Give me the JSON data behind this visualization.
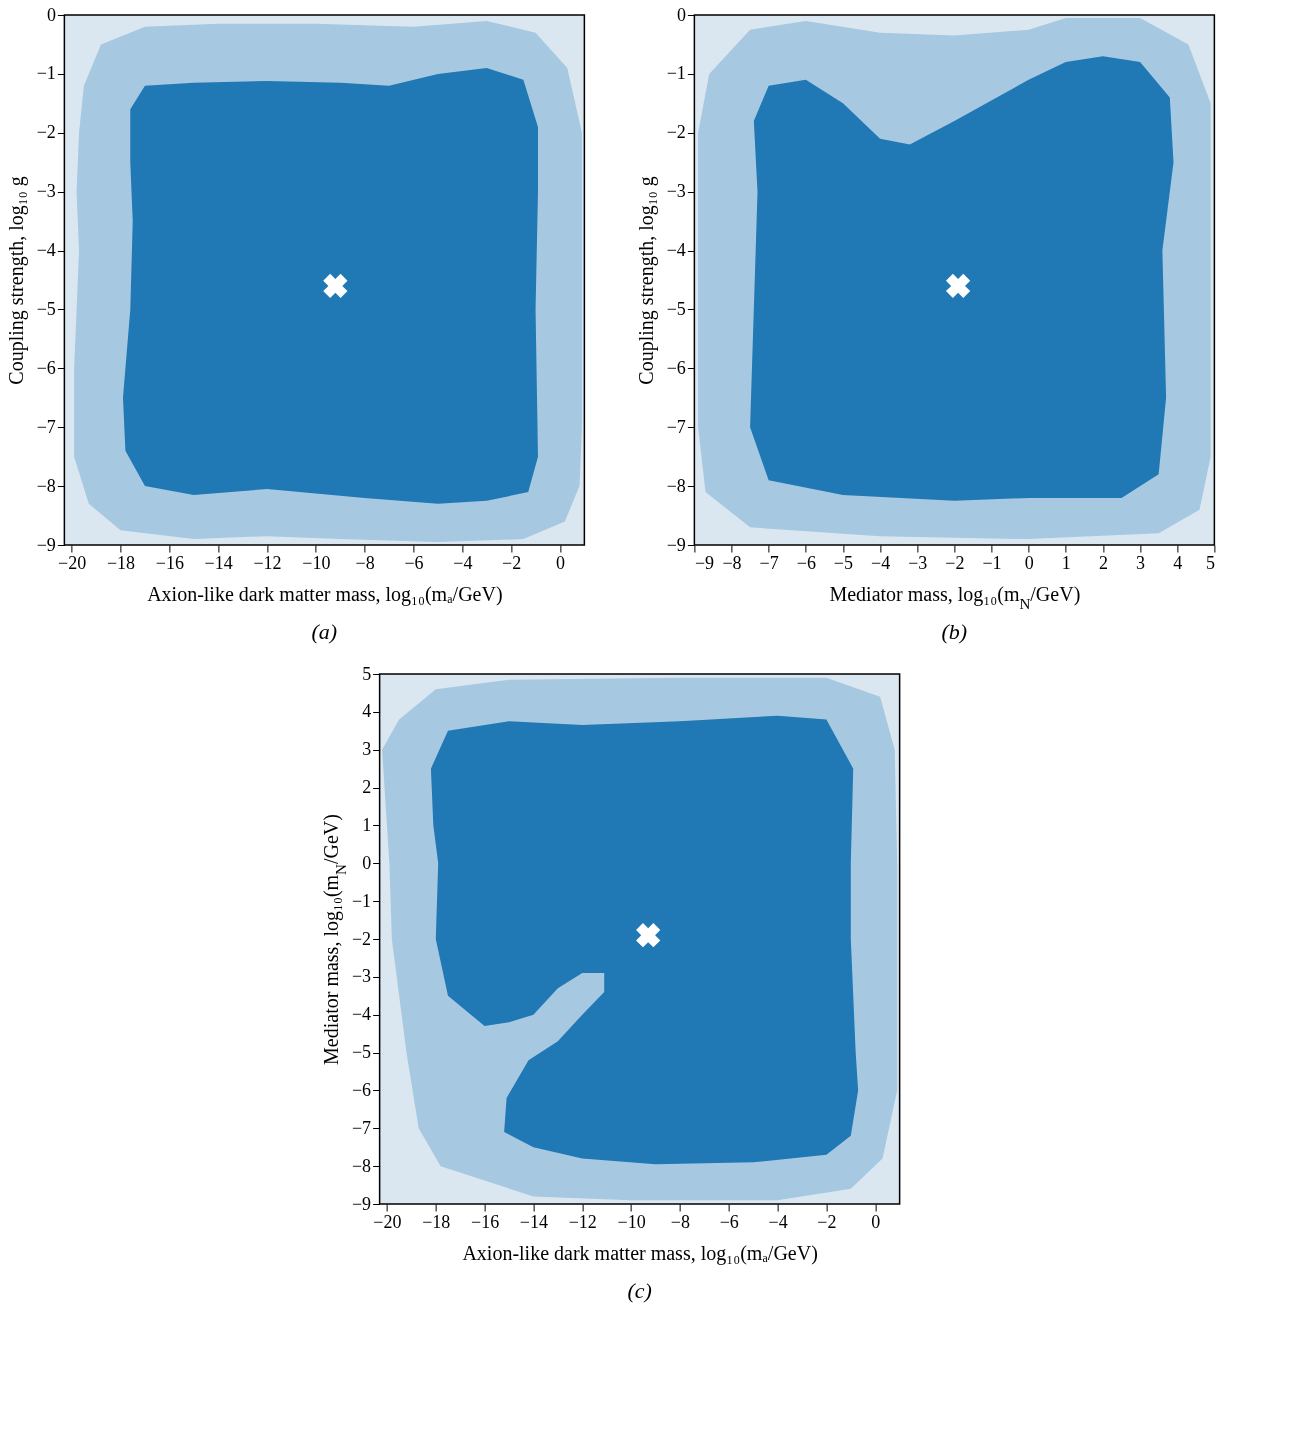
{
  "chart_data": [
    {
      "type": "area",
      "xlabel": "Axion-like dark matter mass,  log₁₀(mₐ/GeV)",
      "ylabel": "Coupling strength,  log₁₀ g",
      "xlim": [
        -20.3,
        1
      ],
      "ylim": [
        -9,
        0
      ],
      "xticks": [
        -20,
        -18,
        -16,
        -14,
        -12,
        -10,
        -8,
        -6,
        -4,
        -2,
        0
      ],
      "yticks": [
        -9,
        -8,
        -7,
        -6,
        -5,
        -4,
        -3,
        -2,
        -1,
        0
      ],
      "annotations": [
        "(a)"
      ],
      "series": [
        {
          "type": "area",
          "color": "#a6c8e1",
          "x": [
            -19.7,
            -19.5,
            -18.8,
            -17,
            -14,
            -10,
            -6,
            -3,
            -1,
            0.3,
            0.9,
            0.9,
            0.9,
            0.8,
            0.2,
            -1.5,
            -5,
            -9,
            -12,
            -15,
            -18,
            -19.3,
            -19.9,
            -19.9,
            -19.7,
            -19.8
          ],
          "values": [
            -2,
            -1.2,
            -0.5,
            -0.2,
            -0.15,
            -0.15,
            -0.2,
            -0.1,
            -0.3,
            -0.9,
            -2,
            -4,
            -7,
            -8,
            -8.6,
            -8.9,
            -8.95,
            -8.9,
            -8.85,
            -8.9,
            -8.75,
            -8.3,
            -7.5,
            -6,
            -4,
            -3
          ]
        },
        {
          "type": "area",
          "color": "#2078b4",
          "x": [
            -17.6,
            -17,
            -15,
            -12,
            -9,
            -7,
            -5,
            -3,
            -1.5,
            -0.9,
            -0.9,
            -1,
            -0.9,
            -1.3,
            -3,
            -5,
            -8,
            -12,
            -15,
            -17,
            -17.8,
            -17.9,
            -17.6,
            -17.5,
            -17.6
          ],
          "values": [
            -1.6,
            -1.2,
            -1.15,
            -1.12,
            -1.15,
            -1.2,
            -1,
            -0.9,
            -1.1,
            -1.9,
            -3,
            -5,
            -7.5,
            -8.1,
            -8.25,
            -8.3,
            -8.2,
            -8.05,
            -8.15,
            -8,
            -7.4,
            -6.5,
            -5,
            -3.5,
            -2.5
          ]
        },
        {
          "type": "scatter",
          "marker": "cross",
          "color": "#ffffff",
          "x": [
            -9.2
          ],
          "values": [
            -4.6
          ]
        }
      ]
    },
    {
      "type": "area",
      "xlabel": "Mediator mass,  log₁₀(m$_{N}$/GeV)",
      "ylabel": "Coupling strength,  log₁₀ g",
      "xlim": [
        -9,
        5
      ],
      "ylim": [
        -9,
        0
      ],
      "xticks": [
        -9,
        -8,
        -7,
        -6,
        -5,
        -4,
        -3,
        -2,
        -1,
        0,
        1,
        2,
        3,
        4,
        5
      ],
      "yticks": [
        -9,
        -8,
        -7,
        -6,
        -5,
        -4,
        -3,
        -2,
        -1,
        0
      ],
      "annotations": [
        "(b)"
      ],
      "series": [
        {
          "type": "area",
          "color": "#a6c8e1",
          "x": [
            -8.9,
            -8.6,
            -7.5,
            -6,
            -4,
            -2,
            0,
            1,
            3,
            4.3,
            4.9,
            4.9,
            4.9,
            4.6,
            3.5,
            0,
            -4,
            -7.5,
            -8.7,
            -8.9
          ],
          "values": [
            -2,
            -1,
            -0.25,
            -0.1,
            -0.3,
            -0.35,
            -0.25,
            -0.05,
            -0.05,
            -0.5,
            -1.5,
            -4,
            -7.5,
            -8.4,
            -8.8,
            -8.9,
            -8.85,
            -8.7,
            -8.1,
            -7
          ]
        },
        {
          "type": "area",
          "color": "#2078b4",
          "x": [
            -7.4,
            -7,
            -6,
            -5,
            -4,
            -3.2,
            -2,
            0,
            1,
            2,
            3,
            3.8,
            3.9,
            3.6,
            3.7,
            3.5,
            2.5,
            0,
            -2,
            -5,
            -7,
            -7.5,
            -7.4,
            -7.3
          ],
          "values": [
            -1.8,
            -1.2,
            -1.1,
            -1.5,
            -2.1,
            -2.2,
            -1.8,
            -1.1,
            -0.8,
            -0.7,
            -0.8,
            -1.4,
            -2.5,
            -4,
            -6.5,
            -7.8,
            -8.2,
            -8.2,
            -8.25,
            -8.15,
            -7.9,
            -7,
            -5,
            -3
          ]
        },
        {
          "type": "scatter",
          "marker": "cross",
          "color": "#ffffff",
          "x": [
            -1.9
          ],
          "values": [
            -4.6
          ]
        }
      ]
    },
    {
      "type": "area",
      "xlabel": "Axion-like dark matter mass,  log₁₀(mₐ/GeV)",
      "ylabel": "Mediator mass,  log₁₀(m$_{N}$/GeV)",
      "xlim": [
        -20.3,
        1
      ],
      "ylim": [
        -9,
        5
      ],
      "xticks": [
        -20,
        -18,
        -16,
        -14,
        -12,
        -10,
        -8,
        -6,
        -4,
        -2,
        0
      ],
      "yticks": [
        -9,
        -8,
        -7,
        -6,
        -5,
        -4,
        -3,
        -2,
        -1,
        0,
        1,
        2,
        3,
        4,
        5
      ],
      "annotations": [
        "(c)"
      ],
      "series": [
        {
          "type": "area",
          "color": "#a6c8e1",
          "x": [
            -20.2,
            -19.9,
            -19.8,
            -19.2,
            -18.7,
            -17.8,
            -14,
            -10,
            -4,
            -1,
            0.3,
            0.9,
            0.9,
            0.8,
            0.2,
            -2,
            -8,
            -15,
            -18,
            -19.5
          ],
          "values": [
            3,
            0,
            -2,
            -5,
            -7,
            -8,
            -8.8,
            -8.9,
            -8.9,
            -8.6,
            -7.8,
            -6,
            0,
            3,
            4.4,
            4.9,
            4.9,
            4.85,
            4.6,
            3.8
          ]
        },
        {
          "type": "area",
          "color": "#2078b4",
          "x": [
            -18.2,
            -17.5,
            -15,
            -12,
            -8,
            -4,
            -2,
            -0.9,
            -1,
            -1,
            -0.8,
            -0.7,
            -1,
            -2,
            -5,
            -9,
            -12,
            -14,
            -15.2,
            -15.1,
            -14.2,
            -13,
            -12,
            -11.1,
            -11.1,
            -12,
            -13,
            -14,
            -15,
            -16,
            -17.5,
            -18,
            -17.9,
            -18.1
          ],
          "values": [
            2.5,
            3.5,
            3.75,
            3.65,
            3.75,
            3.9,
            3.8,
            2.5,
            0,
            -2,
            -5,
            -6,
            -7.2,
            -7.7,
            -7.9,
            -7.95,
            -7.8,
            -7.5,
            -7.1,
            -6.2,
            -5.2,
            -4.7,
            -4,
            -3.4,
            -2.9,
            -2.9,
            -3.3,
            -4,
            -4.2,
            -4.3,
            -3.5,
            -2,
            0,
            1
          ]
        },
        {
          "type": "scatter",
          "marker": "cross",
          "color": "#ffffff",
          "x": [
            -9.3
          ],
          "values": [
            -1.9
          ]
        }
      ]
    }
  ]
}
